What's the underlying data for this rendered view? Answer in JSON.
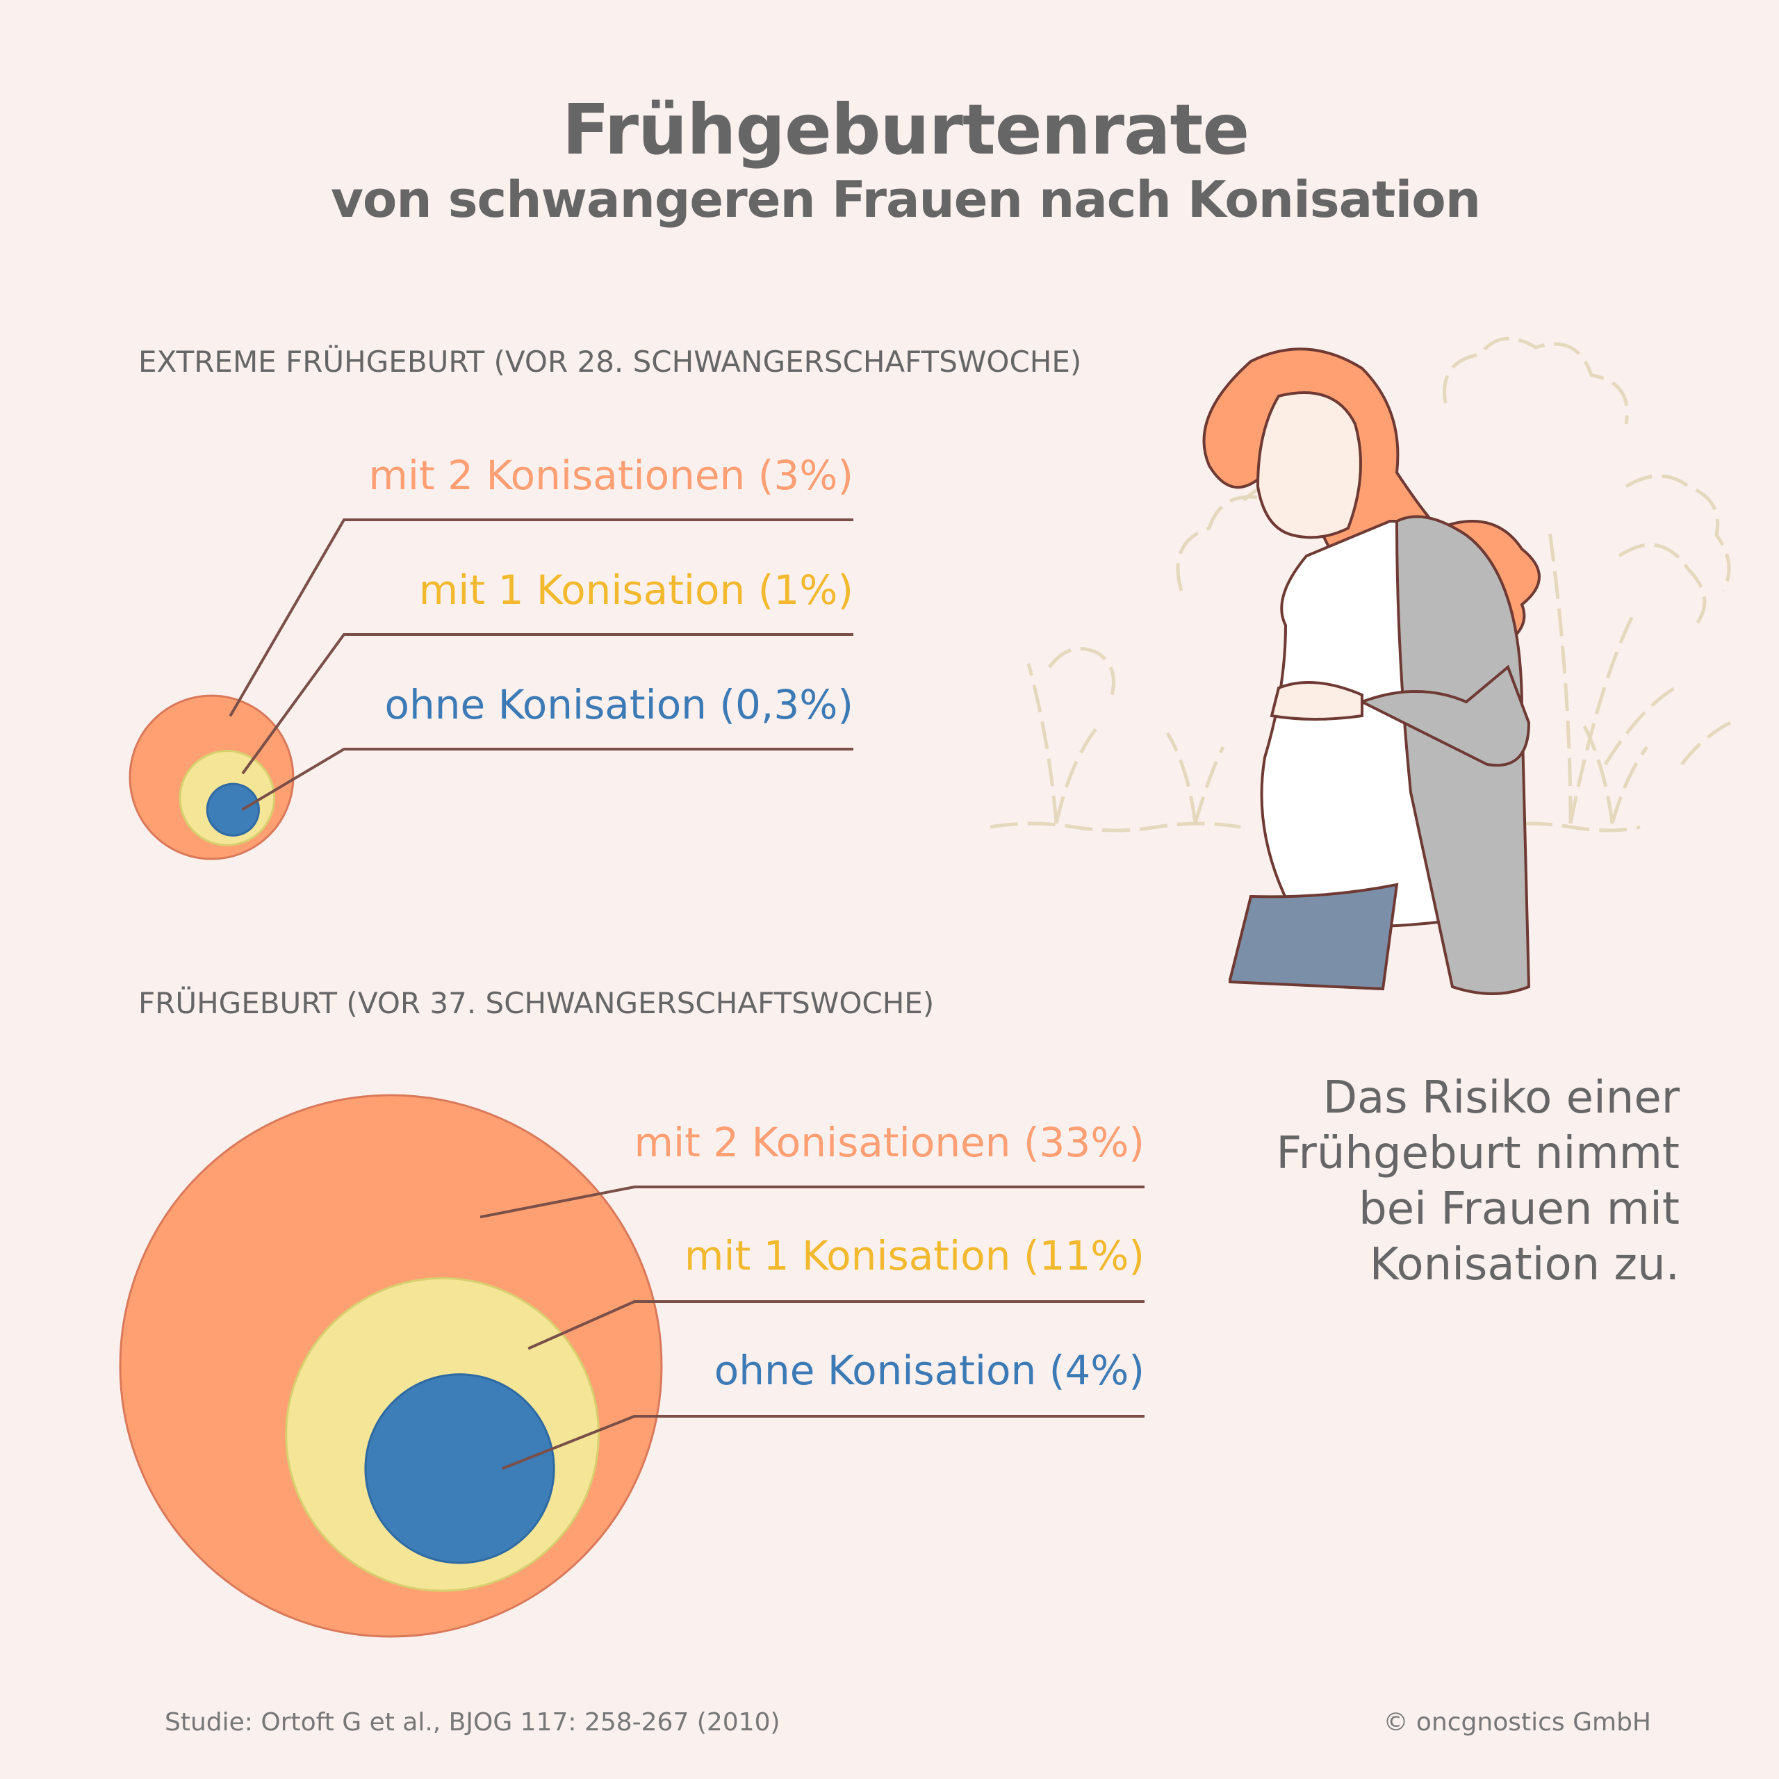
{
  "header": {
    "title": "Frühgeburtenrate",
    "subtitle": "von schwangeren Frauen nach Konisation"
  },
  "colors": {
    "two_conisations": "#ffa073",
    "one_conisation": "#f4e597",
    "no_conisation": "#3d7db8",
    "label_two": "#ff9f73",
    "label_one": "#f2b92e",
    "label_none": "#3c7ab5",
    "leader": "#7a4f48"
  },
  "chart_data": [
    {
      "type": "bubble",
      "title": "EXTREME FRÜHGEBURT (VOR 28. SCHWANGERSCHAFTSWOCHE)",
      "series": [
        {
          "name": "mit 2 Konisationen",
          "value": 3,
          "label": "mit 2 Konisationen (3%)"
        },
        {
          "name": "mit 1 Konisation",
          "value": 1,
          "label": "mit 1 Konisation (1%)"
        },
        {
          "name": "ohne Konisation",
          "value": 0.3,
          "label": "ohne Konisation (0,3%)"
        }
      ],
      "unit": "%"
    },
    {
      "type": "bubble",
      "title": "FRÜHGEBURT (VOR 37. SCHWANGERSCHAFTSWOCHE)",
      "series": [
        {
          "name": "mit 2 Konisationen",
          "value": 33,
          "label": "mit 2 Konisationen (33%)"
        },
        {
          "name": "mit 1 Konisation",
          "value": 11,
          "label": "mit 1 Konisation (11%)"
        },
        {
          "name": "ohne Konisation",
          "value": 4,
          "label": "ohne Konisation (4%)"
        }
      ],
      "unit": "%"
    }
  ],
  "side_text": [
    "Das Risiko einer",
    "Frühgeburt nimmt",
    "bei Frauen mit",
    "Konisation zu."
  ],
  "footer": {
    "source": "Studie: Ortoft G et al., BJOG 117: 258-267 (2010)",
    "copyright": "© oncgnostics GmbH"
  }
}
